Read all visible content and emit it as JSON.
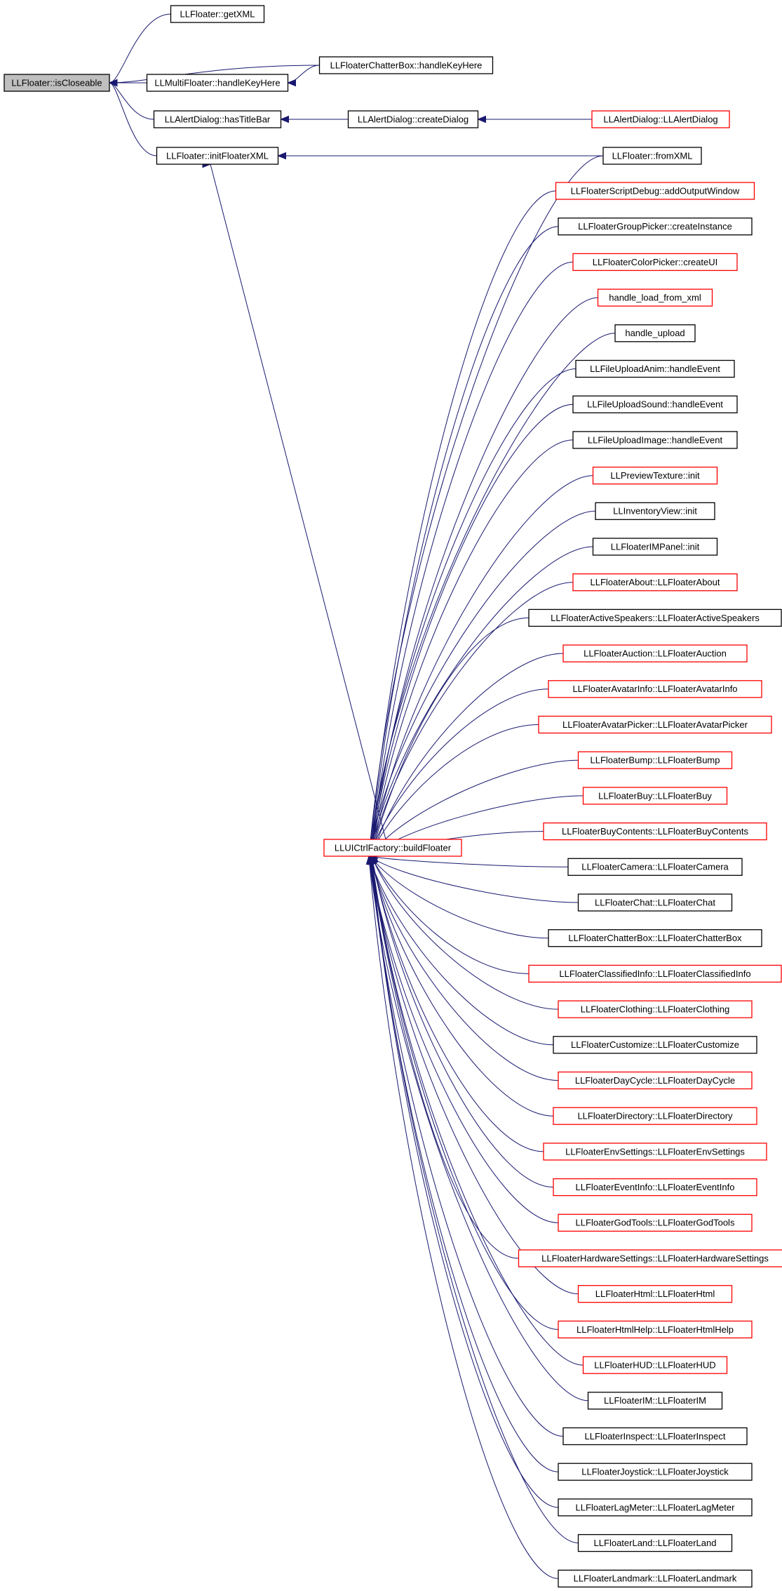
{
  "graph": {
    "root": "isCloseable",
    "nodes": [
      {
        "id": "isCloseable",
        "label": "LLFloater::isCloseable",
        "border": "root"
      },
      {
        "id": "getXML",
        "label": "LLFloater::getXML",
        "border": "black"
      },
      {
        "id": "chatterKey",
        "label": "LLFloaterChatterBox::handleKeyHere",
        "border": "black"
      },
      {
        "id": "multiKey",
        "label": "LLMultiFloater::handleKeyHere",
        "border": "black"
      },
      {
        "id": "hasTitleBar",
        "label": "LLAlertDialog::hasTitleBar",
        "border": "black"
      },
      {
        "id": "createDialog",
        "label": "LLAlertDialog::createDialog",
        "border": "black"
      },
      {
        "id": "alertCtor",
        "label": "LLAlertDialog::LLAlertDialog",
        "border": "red"
      },
      {
        "id": "initFloaterXML",
        "label": "LLFloater::initFloaterXML",
        "border": "black"
      },
      {
        "id": "fromXML",
        "label": "LLFloater::fromXML",
        "border": "black"
      },
      {
        "id": "buildFloater",
        "label": "LLUICtrlFactory::buildFloater",
        "border": "red"
      },
      {
        "id": "n1",
        "label": "LLFloaterScriptDebug::addOutputWindow",
        "border": "red"
      },
      {
        "id": "n2",
        "label": "LLFloaterGroupPicker::createInstance",
        "border": "black"
      },
      {
        "id": "n3",
        "label": "LLFloaterColorPicker::createUI",
        "border": "red"
      },
      {
        "id": "n4",
        "label": "handle_load_from_xml",
        "border": "red"
      },
      {
        "id": "n5",
        "label": "handle_upload",
        "border": "black"
      },
      {
        "id": "n6",
        "label": "LLFileUploadAnim::handleEvent",
        "border": "black"
      },
      {
        "id": "n7",
        "label": "LLFileUploadSound::handleEvent",
        "border": "black"
      },
      {
        "id": "n8",
        "label": "LLFileUploadImage::handleEvent",
        "border": "black"
      },
      {
        "id": "n9",
        "label": "LLPreviewTexture::init",
        "border": "red"
      },
      {
        "id": "n10",
        "label": "LLInventoryView::init",
        "border": "black"
      },
      {
        "id": "n11",
        "label": "LLFloaterIMPanel::init",
        "border": "black"
      },
      {
        "id": "n12",
        "label": "LLFloaterAbout::LLFloaterAbout",
        "border": "red"
      },
      {
        "id": "n13",
        "label": "LLFloaterActiveSpeakers::LLFloaterActiveSpeakers",
        "border": "black"
      },
      {
        "id": "n14",
        "label": "LLFloaterAuction::LLFloaterAuction",
        "border": "red"
      },
      {
        "id": "n15",
        "label": "LLFloaterAvatarInfo::LLFloaterAvatarInfo",
        "border": "red"
      },
      {
        "id": "n16",
        "label": "LLFloaterAvatarPicker::LLFloaterAvatarPicker",
        "border": "red"
      },
      {
        "id": "n17",
        "label": "LLFloaterBump::LLFloaterBump",
        "border": "red"
      },
      {
        "id": "n18",
        "label": "LLFloaterBuy::LLFloaterBuy",
        "border": "red"
      },
      {
        "id": "n19",
        "label": "LLFloaterBuyContents::LLFloaterBuyContents",
        "border": "red"
      },
      {
        "id": "n20",
        "label": "LLFloaterCamera::LLFloaterCamera",
        "border": "black"
      },
      {
        "id": "n21",
        "label": "LLFloaterChat::LLFloaterChat",
        "border": "black"
      },
      {
        "id": "n22",
        "label": "LLFloaterChatterBox::LLFloaterChatterBox",
        "border": "black"
      },
      {
        "id": "n23",
        "label": "LLFloaterClassifiedInfo::LLFloaterClassifiedInfo",
        "border": "red"
      },
      {
        "id": "n24",
        "label": "LLFloaterClothing::LLFloaterClothing",
        "border": "red"
      },
      {
        "id": "n25",
        "label": "LLFloaterCustomize::LLFloaterCustomize",
        "border": "black"
      },
      {
        "id": "n26",
        "label": "LLFloaterDayCycle::LLFloaterDayCycle",
        "border": "red"
      },
      {
        "id": "n27",
        "label": "LLFloaterDirectory::LLFloaterDirectory",
        "border": "red"
      },
      {
        "id": "n28",
        "label": "LLFloaterEnvSettings::LLFloaterEnvSettings",
        "border": "red"
      },
      {
        "id": "n29",
        "label": "LLFloaterEventInfo::LLFloaterEventInfo",
        "border": "red"
      },
      {
        "id": "n30",
        "label": "LLFloaterGodTools::LLFloaterGodTools",
        "border": "red"
      },
      {
        "id": "n31",
        "label": "LLFloaterHardwareSettings::LLFloaterHardwareSettings",
        "border": "red"
      },
      {
        "id": "n32",
        "label": "LLFloaterHtml::LLFloaterHtml",
        "border": "red"
      },
      {
        "id": "n33",
        "label": "LLFloaterHtmlHelp::LLFloaterHtmlHelp",
        "border": "red"
      },
      {
        "id": "n34",
        "label": "LLFloaterHUD::LLFloaterHUD",
        "border": "red"
      },
      {
        "id": "n35",
        "label": "LLFloaterIM::LLFloaterIM",
        "border": "black"
      },
      {
        "id": "n36",
        "label": "LLFloaterInspect::LLFloaterInspect",
        "border": "black"
      },
      {
        "id": "n37",
        "label": "LLFloaterJoystick::LLFloaterJoystick",
        "border": "black"
      },
      {
        "id": "n38",
        "label": "LLFloaterLagMeter::LLFloaterLagMeter",
        "border": "black"
      },
      {
        "id": "n39",
        "label": "LLFloaterLand::LLFloaterLand",
        "border": "black"
      },
      {
        "id": "n40",
        "label": "LLFloaterLandmark::LLFloaterLandmark",
        "border": "black"
      }
    ],
    "edges": [
      {
        "from": "getXML",
        "to": "isCloseable"
      },
      {
        "from": "chatterKey",
        "to": "isCloseable"
      },
      {
        "from": "multiKey",
        "to": "isCloseable"
      },
      {
        "from": "hasTitleBar",
        "to": "isCloseable"
      },
      {
        "from": "initFloaterXML",
        "to": "isCloseable"
      },
      {
        "from": "chatterKey",
        "to": "multiKey"
      },
      {
        "from": "createDialog",
        "to": "hasTitleBar"
      },
      {
        "from": "alertCtor",
        "to": "createDialog"
      },
      {
        "from": "fromXML",
        "to": "initFloaterXML"
      },
      {
        "from": "buildFloater",
        "to": "initFloaterXML"
      },
      {
        "from": "fromXML",
        "to": "buildFloater"
      },
      {
        "from": "n1",
        "to": "buildFloater"
      },
      {
        "from": "n2",
        "to": "buildFloater"
      },
      {
        "from": "n3",
        "to": "buildFloater"
      },
      {
        "from": "n4",
        "to": "buildFloater"
      },
      {
        "from": "n5",
        "to": "buildFloater"
      },
      {
        "from": "n6",
        "to": "buildFloater"
      },
      {
        "from": "n7",
        "to": "buildFloater"
      },
      {
        "from": "n8",
        "to": "buildFloater"
      },
      {
        "from": "n9",
        "to": "buildFloater"
      },
      {
        "from": "n10",
        "to": "buildFloater"
      },
      {
        "from": "n11",
        "to": "buildFloater"
      },
      {
        "from": "n12",
        "to": "buildFloater"
      },
      {
        "from": "n13",
        "to": "buildFloater"
      },
      {
        "from": "n14",
        "to": "buildFloater"
      },
      {
        "from": "n15",
        "to": "buildFloater"
      },
      {
        "from": "n16",
        "to": "buildFloater"
      },
      {
        "from": "n17",
        "to": "buildFloater"
      },
      {
        "from": "n18",
        "to": "buildFloater"
      },
      {
        "from": "n19",
        "to": "buildFloater"
      },
      {
        "from": "n20",
        "to": "buildFloater"
      },
      {
        "from": "n21",
        "to": "buildFloater"
      },
      {
        "from": "n22",
        "to": "buildFloater"
      },
      {
        "from": "n23",
        "to": "buildFloater"
      },
      {
        "from": "n24",
        "to": "buildFloater"
      },
      {
        "from": "n25",
        "to": "buildFloater"
      },
      {
        "from": "n26",
        "to": "buildFloater"
      },
      {
        "from": "n27",
        "to": "buildFloater"
      },
      {
        "from": "n28",
        "to": "buildFloater"
      },
      {
        "from": "n29",
        "to": "buildFloater"
      },
      {
        "from": "n30",
        "to": "buildFloater"
      },
      {
        "from": "n31",
        "to": "buildFloater"
      },
      {
        "from": "n32",
        "to": "buildFloater"
      },
      {
        "from": "n33",
        "to": "buildFloater"
      },
      {
        "from": "n34",
        "to": "buildFloater"
      },
      {
        "from": "n35",
        "to": "buildFloater"
      },
      {
        "from": "n36",
        "to": "buildFloater"
      },
      {
        "from": "n37",
        "to": "buildFloater"
      },
      {
        "from": "n38",
        "to": "buildFloater"
      },
      {
        "from": "n39",
        "to": "buildFloater"
      },
      {
        "from": "n40",
        "to": "buildFloater"
      }
    ]
  },
  "colors": {
    "edge": "#191970",
    "red_border": "#ff0000",
    "black_border": "#000000",
    "root_fill": "#bfbfbf"
  }
}
